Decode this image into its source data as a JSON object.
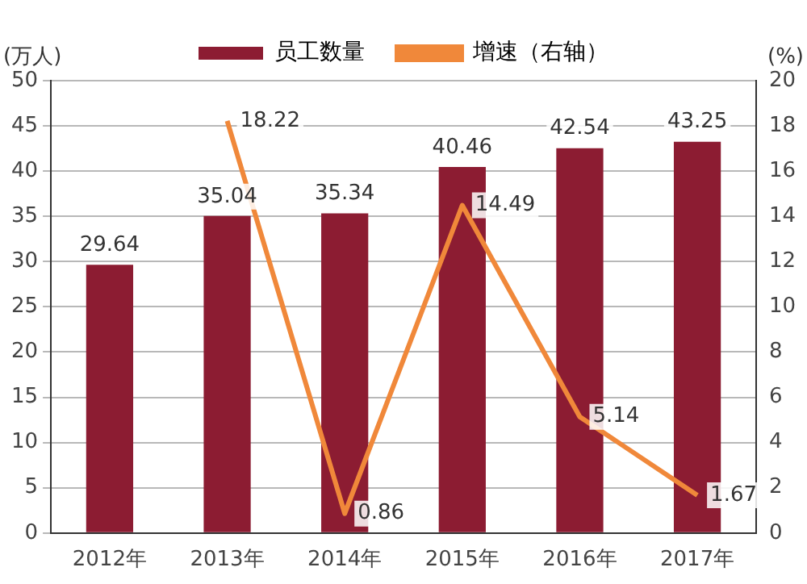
{
  "chart_data": {
    "type": "bar",
    "categories": [
      "2012年",
      "2013年",
      "2014年",
      "2015年",
      "2016年",
      "2017年"
    ],
    "ylabel": "(万人)",
    "y2label": "(%)",
    "series": [
      {
        "name": "员工数量",
        "color": "#8c1c32",
        "values": [
          29.64,
          35.04,
          35.34,
          40.46,
          42.54,
          43.25
        ]
      },
      {
        "name": "增速（右轴）",
        "type": "line",
        "axis": "y2",
        "color": "#f0883a",
        "values": [
          null,
          18.22,
          0.86,
          14.49,
          5.14,
          1.67
        ]
      }
    ],
    "ylim": [
      0,
      50
    ],
    "yticks": [
      0,
      5,
      10,
      15,
      20,
      25,
      30,
      35,
      40,
      45,
      50
    ],
    "y2lim": [
      0,
      20
    ],
    "y2ticks": [
      0,
      2,
      4,
      6,
      8,
      10,
      12,
      14,
      16,
      18,
      20
    ],
    "grid": "y",
    "legend": "top",
    "data_labels": true,
    "marker": "none"
  }
}
